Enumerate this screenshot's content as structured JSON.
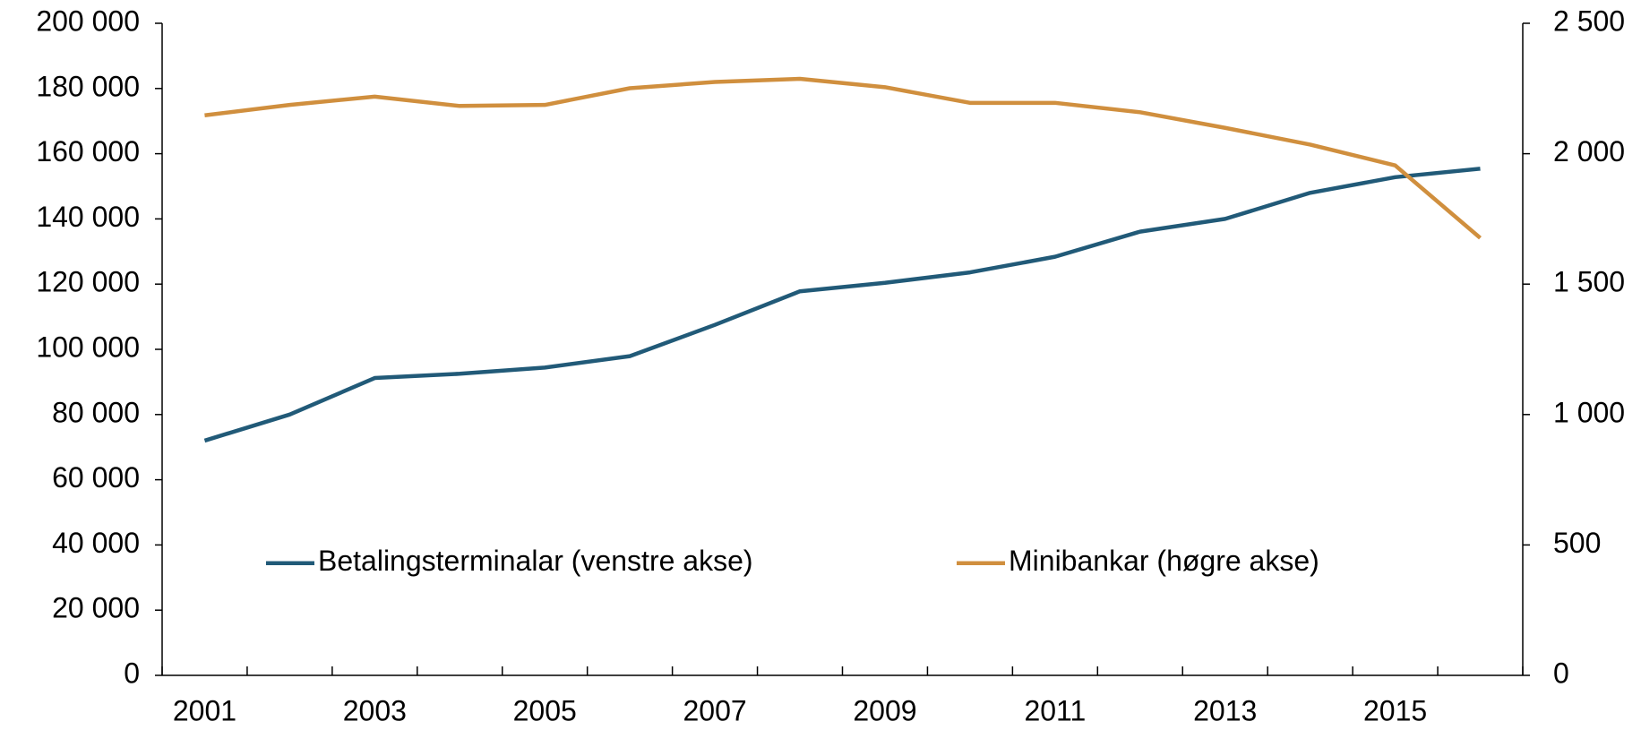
{
  "chart_data": {
    "type": "line",
    "categories": [
      "2001",
      null,
      "2003",
      null,
      "2005",
      null,
      "2007",
      null,
      "2009",
      null,
      "2011",
      null,
      "2013",
      null,
      "2015",
      null
    ],
    "series": [
      {
        "name": "Betalingsterminalar (venstre akse)",
        "color": "#215a78",
        "axis": "y",
        "values": [
          72000,
          80000,
          91200,
          92500,
          94400,
          97900,
          107500,
          117800,
          120400,
          123600,
          128400,
          136100,
          140000,
          148000,
          152800,
          155400
        ]
      },
      {
        "name": "Minibankar (høgre akse)",
        "color": "#d08f3e",
        "axis": "y2",
        "values": [
          2147,
          2187,
          2219,
          2183,
          2187,
          2251,
          2275,
          2287,
          2255,
          2195,
          2195,
          2159,
          2099,
          2035,
          1955,
          1677
        ]
      }
    ],
    "ylim": [
      0,
      200000
    ],
    "yticks": [
      0,
      {
        "value": 20000,
        "label": "20 000"
      },
      {
        "value": 40000,
        "label": "40 000"
      },
      {
        "value": 60000,
        "label": "60 000"
      },
      {
        "value": 80000,
        "label": "80 000"
      },
      {
        "value": 100000,
        "label": "100 000"
      },
      {
        "value": 120000,
        "label": "120 000"
      },
      {
        "value": 140000,
        "label": "140 000"
      },
      {
        "value": 160000,
        "label": "160 000"
      },
      {
        "value": 180000,
        "label": "180 000"
      },
      {
        "value": 200000,
        "label": "200 000"
      }
    ],
    "y2lim": [
      0,
      2500
    ],
    "y2ticks": [
      0,
      500,
      {
        "value": 1000,
        "label": "1 000"
      },
      {
        "value": 1500,
        "label": "1 500"
      },
      {
        "value": 2000,
        "label": "2 000"
      },
      {
        "value": 2500,
        "label": "2 500"
      }
    ],
    "legend": "bottom"
  }
}
